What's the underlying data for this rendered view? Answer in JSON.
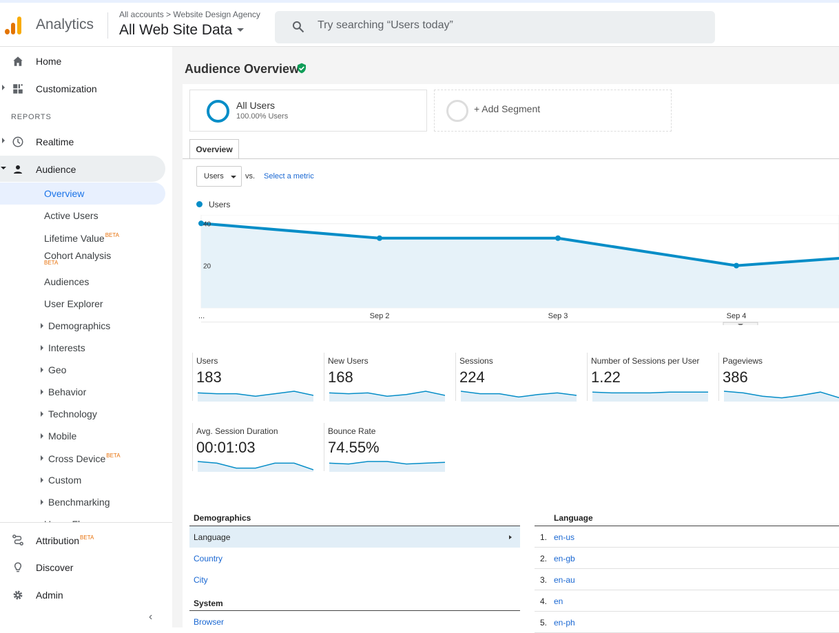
{
  "header": {
    "brand": "Analytics",
    "crumb_root": "All accounts",
    "crumb_sep": ">",
    "crumb_account": "Website Design Agency",
    "property": "All Web Site Data",
    "search_placeholder": "Try searching “Users today”",
    "logo_colors": [
      "#f9ab00",
      "#e37400",
      "#e37400"
    ]
  },
  "sidebar": {
    "home": "Home",
    "customization": "Customization",
    "reports_label": "REPORTS",
    "realtime": "Realtime",
    "audience": "Audience",
    "audience_items": [
      {
        "label": "Overview"
      },
      {
        "label": "Active Users"
      },
      {
        "label": "Lifetime Value",
        "badge": "BETA"
      },
      {
        "label": "Cohort Analysis",
        "badge": "BETA"
      },
      {
        "label": "Audiences"
      },
      {
        "label": "User Explorer"
      },
      {
        "label": "Demographics"
      },
      {
        "label": "Interests"
      },
      {
        "label": "Geo"
      },
      {
        "label": "Behavior"
      },
      {
        "label": "Technology"
      },
      {
        "label": "Mobile"
      },
      {
        "label": "Cross Device",
        "badge": "BETA"
      },
      {
        "label": "Custom"
      },
      {
        "label": "Benchmarking"
      },
      {
        "label": "Users Flow"
      }
    ],
    "attribution": "Attribution",
    "attribution_badge": "BETA",
    "discover": "Discover",
    "admin": "Admin",
    "collapse_glyph": "‹"
  },
  "main": {
    "title": "Audience Overview",
    "segments": {
      "all_users": "All Users",
      "all_users_pct": "100.00% Users",
      "add_segment": "+ Add Segment"
    },
    "tab_overview": "Overview",
    "metric_select": "Users",
    "vs": "vs.",
    "select_metric": "Select a metric",
    "legend_label": "Users",
    "accent": "#058dc7"
  },
  "chart_data": {
    "type": "area",
    "series": [
      {
        "name": "Users",
        "values": [
          40,
          33,
          33,
          20,
          26
        ]
      }
    ],
    "categories": [
      "...",
      "Sep 2",
      "Sep 3",
      "Sep 4",
      ""
    ],
    "y_ticks": [
      "40",
      "20"
    ],
    "ylim": [
      0,
      44
    ],
    "grid": true
  },
  "metrics": [
    {
      "name": "Users",
      "value": "183",
      "spark": [
        8,
        7,
        7,
        4,
        7,
        10,
        5
      ]
    },
    {
      "name": "New Users",
      "value": "168",
      "spark": [
        8,
        7,
        8,
        4,
        6,
        10,
        5
      ]
    },
    {
      "name": "Sessions",
      "value": "224",
      "spark": [
        10,
        7,
        7,
        3,
        6,
        8,
        5
      ]
    },
    {
      "name": "Number of Sessions per User",
      "value": "1.22",
      "spark": [
        9,
        8,
        8,
        8,
        9,
        9,
        9
      ]
    },
    {
      "name": "Pageviews",
      "value": "386",
      "spark": [
        10,
        8,
        4,
        2,
        5,
        9,
        2
      ]
    },
    {
      "name": "Avg. Session Duration",
      "value": "00:01:03",
      "spark": [
        10,
        8,
        2,
        2,
        8,
        8,
        0
      ]
    },
    {
      "name": "Bounce Rate",
      "value": "74.55%",
      "spark": [
        8,
        7,
        10,
        10,
        7,
        8,
        9
      ]
    }
  ],
  "demographics": {
    "title": "Demographics",
    "items": [
      "Language",
      "Country",
      "City"
    ],
    "system_title": "System",
    "system_items": [
      "Browser"
    ]
  },
  "language": {
    "title": "Language",
    "rows": [
      {
        "n": "1.",
        "v": "en-us"
      },
      {
        "n": "2.",
        "v": "en-gb"
      },
      {
        "n": "3.",
        "v": "en-au"
      },
      {
        "n": "4.",
        "v": "en"
      },
      {
        "n": "5.",
        "v": "en-ph"
      }
    ]
  }
}
